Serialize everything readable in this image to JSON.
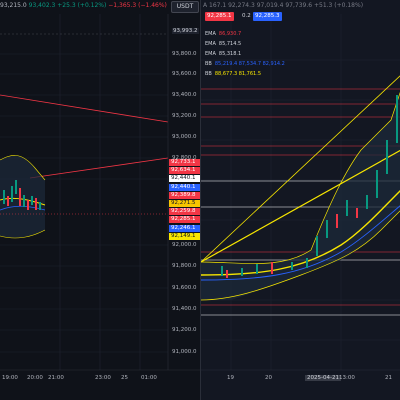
{
  "left": {
    "ohlc_text": "93,215.0",
    "ohlc_high": "93,402.3",
    "ohlc_change": "+25.3 (+0.12%)",
    "ohlc_change2": "−1,365.3 (−1.46%)",
    "currency": "USDT",
    "price_axis": [
      "93,993.2",
      "93,800.0",
      "93,600.0",
      "93,400.0",
      "93,200.0",
      "93,000.0",
      "92,800.0",
      "92,600.0",
      "92,000.0",
      "91,800.0",
      "91,600.0",
      "91,400.0",
      "91,200.0",
      "91,000.0"
    ],
    "price_tags": [
      {
        "text": "92,733.1",
        "bg": "#f23645",
        "fg": "#ffffff"
      },
      {
        "text": "92,634.1",
        "bg": "#f23645",
        "fg": "#ffffff"
      },
      {
        "text": "92,440.1",
        "bg": "#ffffff",
        "fg": "#131722"
      },
      {
        "text": "92,440.1",
        "bg": "#2962ff",
        "fg": "#ffffff"
      },
      {
        "text": "92,389.8",
        "bg": "#f23645",
        "fg": "#ffffff"
      },
      {
        "text": "92,271.5",
        "bg": "#f7c600",
        "fg": "#131722"
      },
      {
        "text": "92,259.8",
        "bg": "#f23645",
        "fg": "#ffffff"
      },
      {
        "text": "92,285.1",
        "bg": "#f23645",
        "fg": "#ffffff"
      },
      {
        "text": "92,246.1",
        "bg": "#2962ff",
        "fg": "#ffffff"
      },
      {
        "text": "92,149.1",
        "bg": "#f7e600",
        "fg": "#131722"
      }
    ],
    "time_axis": [
      "19:00",
      "20:00",
      "21:00",
      "23:00",
      "25",
      "01:00"
    ]
  },
  "right": {
    "sell_price": "92,285.1",
    "spread": "0.2",
    "buy_price": "92,285.3",
    "header_text": "A 167.1 92,274.3 97,019.4 97,739.6 +51.3 (+0.18%)",
    "legend": [
      {
        "label": "EMA",
        "value": "86,930.7",
        "color": "#f23645"
      },
      {
        "label": "EMA",
        "value": "85,714.5",
        "color": "#d1d4dc"
      },
      {
        "label": "EMA",
        "value": "85,318.1",
        "color": "#d1d4dc"
      },
      {
        "label": "BB",
        "value": "85,219.4 87,534.7 82,914.2",
        "color": "#2962ff"
      },
      {
        "label": "BB",
        "value": "88,677.3 81,761.5",
        "color": "#f7e600"
      }
    ],
    "time_axis": [
      "19",
      "20",
      "2025-04-21",
      "13:00",
      "21"
    ],
    "cursor_date": "2025-04-21"
  },
  "colors": {
    "up": "#089981",
    "down": "#f23645",
    "bb_blue": "#2962ff",
    "bb_yellow": "#f7e600",
    "bg": "#131722"
  }
}
